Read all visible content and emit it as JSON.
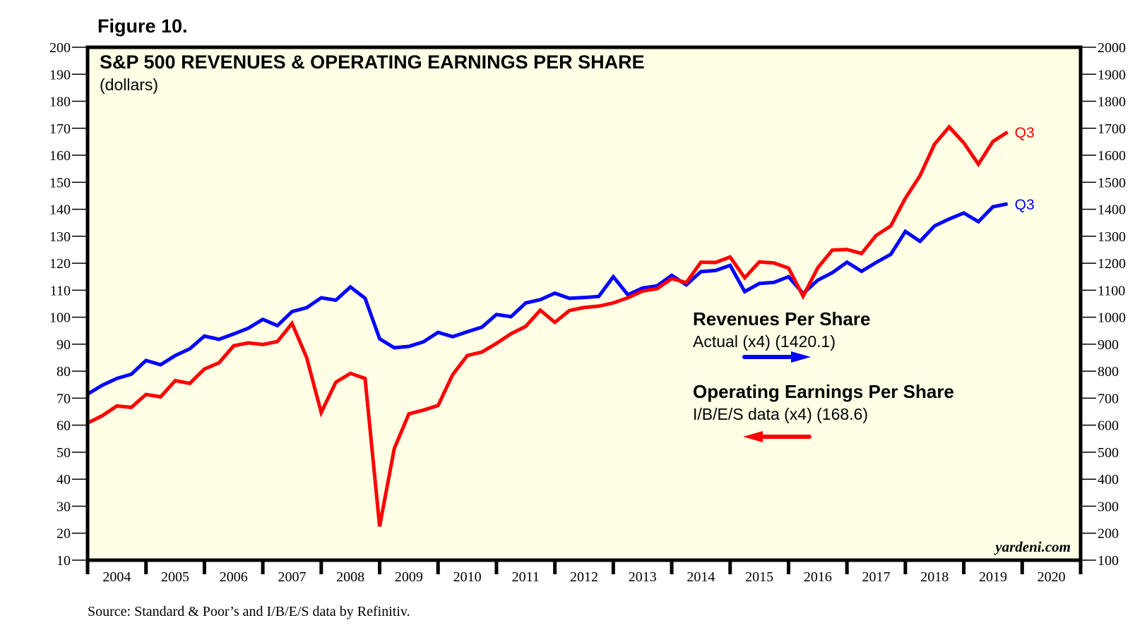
{
  "figure_label": "Figure 10.",
  "source": "Source: Standard & Poor’s and I/B/E/S data by Refinitiv.",
  "chart_data": {
    "type": "line",
    "title": "S&P 500 REVENUES & OPERATING EARNINGS PER SHARE",
    "subtitle": "(dollars)",
    "watermark": "yardeni.com",
    "xlabel": "",
    "x_start": "2003-Q4",
    "x_frequency": "quarterly",
    "x_range": [
      2004,
      2021
    ],
    "x_tick_labels": [
      "2004",
      "2005",
      "2006",
      "2007",
      "2008",
      "2009",
      "2010",
      "2011",
      "2012",
      "2013",
      "2014",
      "2015",
      "2016",
      "2017",
      "2018",
      "2019",
      "2020"
    ],
    "y_left": {
      "label": "",
      "range": [
        10,
        200
      ],
      "ticks": [
        200,
        190,
        180,
        170,
        160,
        150,
        140,
        130,
        120,
        110,
        100,
        90,
        80,
        70,
        60,
        50,
        40,
        30,
        20,
        10
      ]
    },
    "y_right": {
      "label": "",
      "range": [
        100,
        2000
      ],
      "ticks": [
        2000,
        1900,
        1800,
        1700,
        1600,
        1500,
        1400,
        1300,
        1200,
        1100,
        1000,
        900,
        800,
        700,
        600,
        500,
        400,
        300,
        200,
        100
      ]
    },
    "grid": false,
    "series": [
      {
        "name": "Revenues Per Share",
        "note": "Actual (x4) (1420.1)",
        "axis": "right",
        "scale_note": "plotted on right axis (values shown in right-axis units)",
        "color": "#0000ff",
        "end_label": "Q3",
        "arrow": "right",
        "values": [
          715,
          748,
          773,
          789,
          840,
          824,
          858,
          883,
          930,
          918,
          938,
          959,
          992,
          969,
          1021,
          1035,
          1072,
          1063,
          1112,
          1070,
          920,
          887,
          892,
          909,
          944,
          928,
          946,
          963,
          1010,
          1002,
          1053,
          1065,
          1089,
          1070,
          1073,
          1077,
          1150,
          1083,
          1108,
          1116,
          1155,
          1120,
          1169,
          1173,
          1192,
          1095,
          1125,
          1129,
          1150,
          1088,
          1137,
          1165,
          1204,
          1170,
          1203,
          1233,
          1318,
          1281,
          1338,
          1364,
          1386,
          1354,
          1409,
          1420.1
        ]
      },
      {
        "name": "Operating Earnings Per Share",
        "note": "I/B/E/S data (x4) (168.6)",
        "axis": "left",
        "color": "#ff0000",
        "end_label": "Q3",
        "arrow": "left",
        "values": [
          60.8,
          63.5,
          67.1,
          66.6,
          71.4,
          70.5,
          76.5,
          75.5,
          80.8,
          83.1,
          89.4,
          90.5,
          89.9,
          91.0,
          97.7,
          85.1,
          64.7,
          75.9,
          79.2,
          77.3,
          22.5,
          51.3,
          64.2,
          65.6,
          67.3,
          78.7,
          85.8,
          87.1,
          90.3,
          93.9,
          96.6,
          102.6,
          98.1,
          102.5,
          103.6,
          104.1,
          105.3,
          107.2,
          109.7,
          110.6,
          114.3,
          112.8,
          120.4,
          120.3,
          122.3,
          114.6,
          120.5,
          120.1,
          118.2,
          107.8,
          118.3,
          124.9,
          125.1,
          123.6,
          130.3,
          133.8,
          144.1,
          152.4,
          164.1,
          170.5,
          164.6,
          156.7,
          165.1,
          168.6
        ]
      }
    ],
    "legend": [
      {
        "title": "Revenues Per Share",
        "subtitle": "Actual (x4) (1420.1)",
        "arrow_direction": "right",
        "color": "#0000ff"
      },
      {
        "title": "Operating Earnings Per Share",
        "subtitle": "I/B/E/S data (x4) (168.6)",
        "arrow_direction": "left",
        "color": "#ff0000"
      }
    ],
    "legend_placement": "center-right",
    "plot_background": "#ffffe6"
  }
}
